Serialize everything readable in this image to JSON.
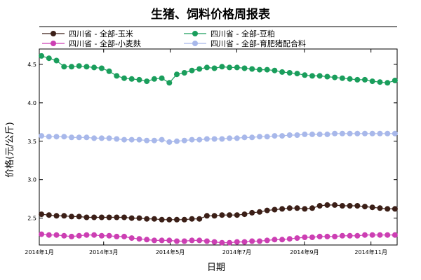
{
  "chart_data": {
    "type": "line",
    "title": "生猪、饲料价格周报表",
    "xlabel": "日期",
    "ylabel": "价格(元/公斤)",
    "ylim": [
      2.15,
      4.7
    ],
    "yticks": [
      2.5,
      3.0,
      3.5,
      4.0,
      4.5
    ],
    "ytick_labels": [
      "2.5",
      "3.0",
      "3.5",
      "4.0",
      "4.5"
    ],
    "xlim": [
      "2014-01-01",
      "2014-11-25"
    ],
    "xticks": [
      "2014-01-01",
      "2014-03-01",
      "2014-05-01",
      "2014-07-01",
      "2014-09-01",
      "2014-11-01"
    ],
    "xtick_labels": [
      "2014年1月",
      "2014年3月",
      "2014年5月",
      "2014年7月",
      "2014年9月",
      "2014年11月"
    ],
    "legend_placement": "top",
    "series": [
      {
        "name": "四川省 - 全部-玉米",
        "color": "#3b1f17",
        "values": [
          2.55,
          2.54,
          2.53,
          2.53,
          2.52,
          2.52,
          2.51,
          2.51,
          2.51,
          2.51,
          2.51,
          2.51,
          2.5,
          2.5,
          2.49,
          2.49,
          2.48,
          2.48,
          2.48,
          2.48,
          2.49,
          2.49,
          2.53,
          2.53,
          2.54,
          2.54,
          2.54,
          2.55,
          2.57,
          2.58,
          2.6,
          2.61,
          2.62,
          2.63,
          2.63,
          2.62,
          2.63,
          2.66,
          2.67,
          2.67,
          2.66,
          2.66,
          2.66,
          2.65,
          2.64,
          2.63,
          2.62,
          2.62
        ]
      },
      {
        "name": "四川省 - 全部-豆粕",
        "color": "#1a9e5c",
        "values": [
          4.61,
          4.58,
          4.55,
          4.47,
          4.47,
          4.48,
          4.47,
          4.46,
          4.45,
          4.41,
          4.35,
          4.32,
          4.31,
          4.3,
          4.28,
          4.31,
          4.32,
          4.26,
          4.37,
          4.39,
          4.42,
          4.44,
          4.46,
          4.45,
          4.47,
          4.46,
          4.46,
          4.45,
          4.44,
          4.43,
          4.43,
          4.42,
          4.4,
          4.39,
          4.38,
          4.36,
          4.35,
          4.35,
          4.34,
          4.33,
          4.32,
          4.31,
          4.3,
          4.3,
          4.28,
          4.27,
          4.26,
          4.29
        ]
      },
      {
        "name": "四川省 - 全部-小麦麸",
        "color": "#cc3fb3",
        "values": [
          2.29,
          2.28,
          2.28,
          2.27,
          2.26,
          2.27,
          2.28,
          2.28,
          2.27,
          2.27,
          2.26,
          2.26,
          2.24,
          2.23,
          2.22,
          2.21,
          2.21,
          2.21,
          2.2,
          2.2,
          2.21,
          2.21,
          2.2,
          2.19,
          2.18,
          2.18,
          2.19,
          2.19,
          2.2,
          2.2,
          2.21,
          2.22,
          2.22,
          2.23,
          2.24,
          2.25,
          2.25,
          2.26,
          2.26,
          2.26,
          2.27,
          2.27,
          2.27,
          2.28,
          2.28,
          2.28,
          2.28,
          2.28
        ]
      },
      {
        "name": "四川省 - 全部-育肥猪配合料",
        "color": "#a8b8ea",
        "values": [
          3.57,
          3.56,
          3.56,
          3.56,
          3.55,
          3.55,
          3.55,
          3.54,
          3.54,
          3.54,
          3.53,
          3.52,
          3.52,
          3.52,
          3.51,
          3.51,
          3.52,
          3.49,
          3.5,
          3.51,
          3.52,
          3.52,
          3.53,
          3.53,
          3.53,
          3.54,
          3.54,
          3.55,
          3.55,
          3.56,
          3.56,
          3.57,
          3.57,
          3.58,
          3.58,
          3.59,
          3.59,
          3.59,
          3.59,
          3.6,
          3.6,
          3.6,
          3.6,
          3.6,
          3.6,
          3.6,
          3.6,
          3.6
        ]
      }
    ]
  }
}
